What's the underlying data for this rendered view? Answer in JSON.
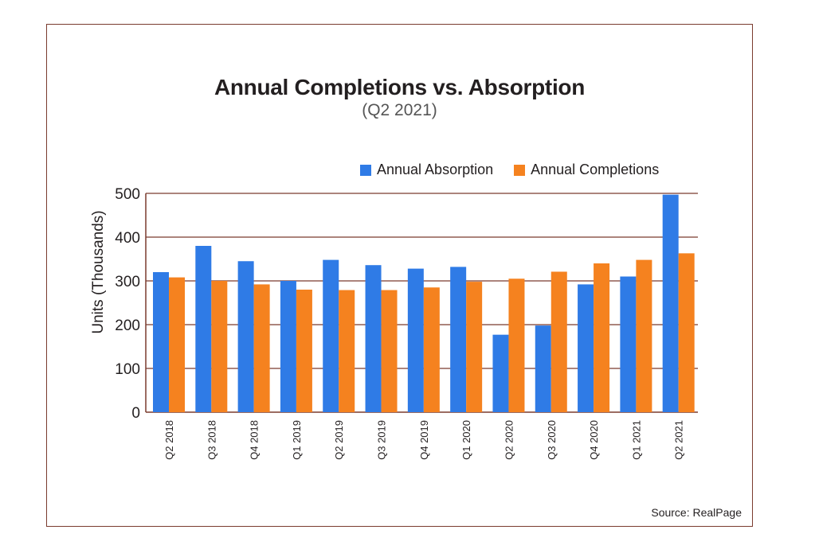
{
  "chart_data": {
    "type": "bar",
    "title": "Annual Completions vs. Absorption",
    "subtitle": "(Q2 2021)",
    "ylabel": "Units (Thousands)",
    "xlabel": "",
    "ylim": [
      0,
      500
    ],
    "yticks": [
      0,
      100,
      200,
      300,
      400,
      500
    ],
    "grid": true,
    "legend_position": "top-right",
    "categories": [
      "Q2 2018",
      "Q3 2018",
      "Q4 2018",
      "Q1 2019",
      "Q2 2019",
      "Q3 2019",
      "Q4 2019",
      "Q1 2020",
      "Q2 2020",
      "Q3 2020",
      "Q4 2020",
      "Q1 2021",
      "Q2 2021"
    ],
    "series": [
      {
        "name": "Annual Absorption",
        "color": "#2f7be6",
        "values": [
          320,
          380,
          345,
          300,
          348,
          336,
          328,
          332,
          177,
          198,
          292,
          310,
          497
        ]
      },
      {
        "name": "Annual Completions",
        "color": "#f5821f",
        "values": [
          308,
          300,
          292,
          280,
          279,
          279,
          285,
          298,
          305,
          321,
          340,
          348,
          363
        ]
      }
    ],
    "source": "Source: RealPage"
  }
}
